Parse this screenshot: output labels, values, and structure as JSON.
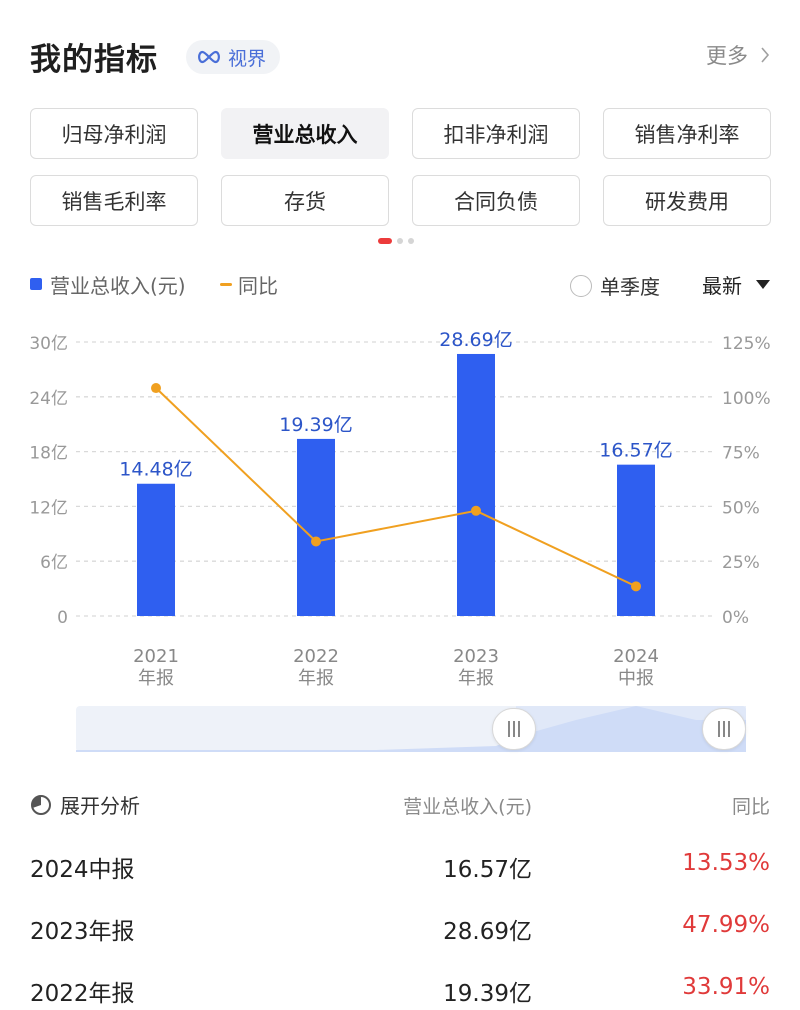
{
  "header": {
    "title": "我的指标",
    "horizon_label": "视界",
    "more_label": "更多"
  },
  "metrics": [
    {
      "label": "归母净利润",
      "active": false
    },
    {
      "label": "营业总收入",
      "active": true
    },
    {
      "label": "扣非净利润",
      "active": false
    },
    {
      "label": "销售净利率",
      "active": false
    },
    {
      "label": "销售毛利率",
      "active": false
    },
    {
      "label": "存货",
      "active": false
    },
    {
      "label": "合同负债",
      "active": false
    },
    {
      "label": "研发费用",
      "active": false
    }
  ],
  "legend": {
    "bar_label": "营业总收入(元)",
    "line_label": "同比",
    "quarter_label": "单季度",
    "sort_label": "最新"
  },
  "colors": {
    "bar": "#2f5ff0",
    "line": "#f0a020",
    "positive": "#e03a3a",
    "bar_label": "#2c55c8"
  },
  "chart_data": {
    "type": "bar",
    "categories": [
      "2021\n年报",
      "2022\n年报",
      "2023\n年报",
      "2024\n中报"
    ],
    "series": [
      {
        "name": "营业总收入(元)",
        "type": "bar",
        "axis": "left",
        "values": [
          14.48,
          19.39,
          28.69,
          16.57
        ],
        "labels": [
          "14.48亿",
          "19.39亿",
          "28.69亿",
          "16.57亿"
        ]
      },
      {
        "name": "同比",
        "type": "line",
        "axis": "right",
        "values": [
          104,
          34,
          48,
          13.53
        ]
      }
    ],
    "y_left": {
      "ticks": [
        "0",
        "6亿",
        "12亿",
        "18亿",
        "24亿",
        "30亿"
      ],
      "range": [
        0,
        30
      ]
    },
    "y_right": {
      "ticks": [
        "0%",
        "25%",
        "50%",
        "75%",
        "100%",
        "125%"
      ],
      "range": [
        0,
        125
      ]
    },
    "grid": true
  },
  "table": {
    "expand_label": "展开分析",
    "col_revenue": "营业总收入(元)",
    "col_yoy": "同比",
    "rows": [
      {
        "period": "2024中报",
        "revenue": "16.57亿",
        "yoy": "13.53%"
      },
      {
        "period": "2023年报",
        "revenue": "28.69亿",
        "yoy": "47.99%"
      },
      {
        "period": "2022年报",
        "revenue": "19.39亿",
        "yoy": "33.91%"
      }
    ]
  }
}
